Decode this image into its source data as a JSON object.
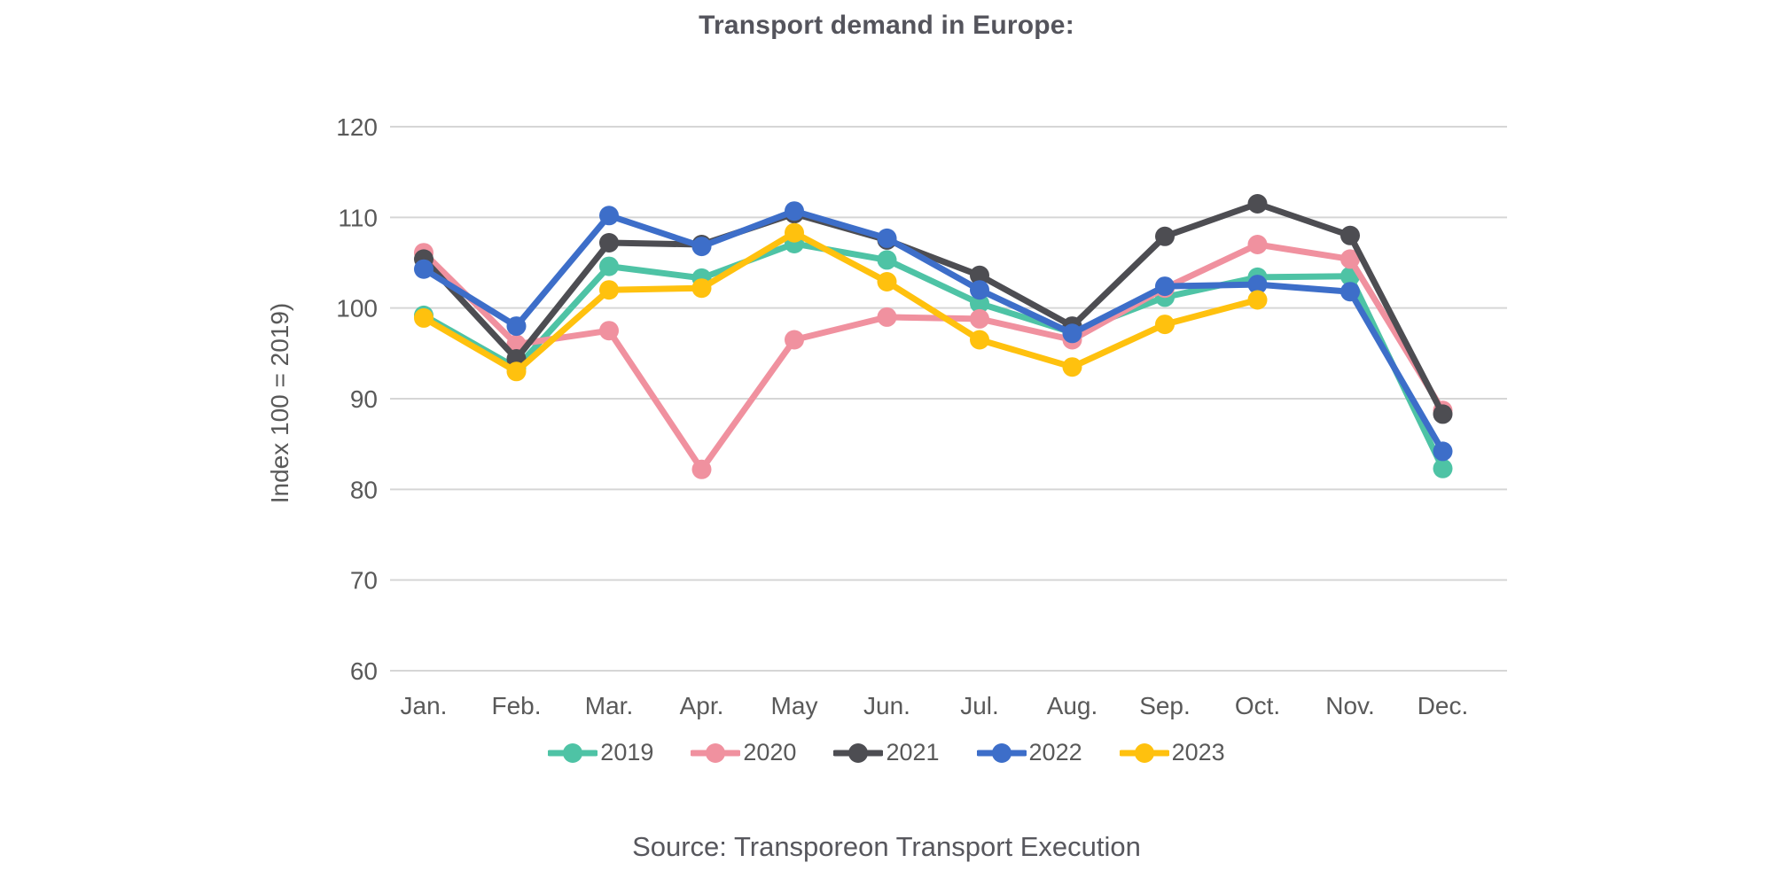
{
  "source": "Source: Transporeon Transport Execution",
  "chart_data": {
    "type": "line",
    "title": "Transport demand in Europe:",
    "ylabel": "Index 100 = 2019)",
    "xlabel": "",
    "x_categories": [
      "Jan.",
      "Feb.",
      "Mar.",
      "Apr.",
      "May",
      "Jun.",
      "Jul.",
      "Aug.",
      "Sep.",
      "Oct.",
      "Nov.",
      "Dec."
    ],
    "ylim": [
      60,
      120
    ],
    "yticks": [
      60,
      70,
      80,
      90,
      100,
      110,
      120
    ],
    "grid": "horizontal",
    "legend_position": "bottom",
    "colors": {
      "grid": "#D6D6D6",
      "axis_text": "#595959",
      "title_text": "#54545C"
    },
    "series": [
      {
        "name": "2019",
        "color": "#4EC3A5",
        "values": [
          99.2,
          93.4,
          104.6,
          103.3,
          107.1,
          105.3,
          100.5,
          97.3,
          101.2,
          103.4,
          103.5,
          82.3
        ]
      },
      {
        "name": "2020",
        "color": "#F0919F",
        "values": [
          106.1,
          96.0,
          97.5,
          82.2,
          96.5,
          99.0,
          98.8,
          96.5,
          102.2,
          107.0,
          105.4,
          88.7
        ]
      },
      {
        "name": "2021",
        "color": "#4D4D52",
        "values": [
          105.4,
          94.4,
          107.2,
          107.0,
          110.4,
          107.5,
          103.6,
          98.0,
          107.9,
          111.5,
          108.0,
          88.3
        ]
      },
      {
        "name": "2022",
        "color": "#3D6EC9",
        "values": [
          104.3,
          98.0,
          110.2,
          106.8,
          110.7,
          107.7,
          102.0,
          97.2,
          102.4,
          102.6,
          101.8,
          84.2
        ]
      },
      {
        "name": "2023",
        "color": "#FFC10E",
        "values": [
          98.9,
          93.0,
          102.0,
          102.2,
          108.3,
          102.9,
          96.5,
          93.5,
          98.2,
          100.9,
          null,
          null
        ]
      }
    ]
  }
}
